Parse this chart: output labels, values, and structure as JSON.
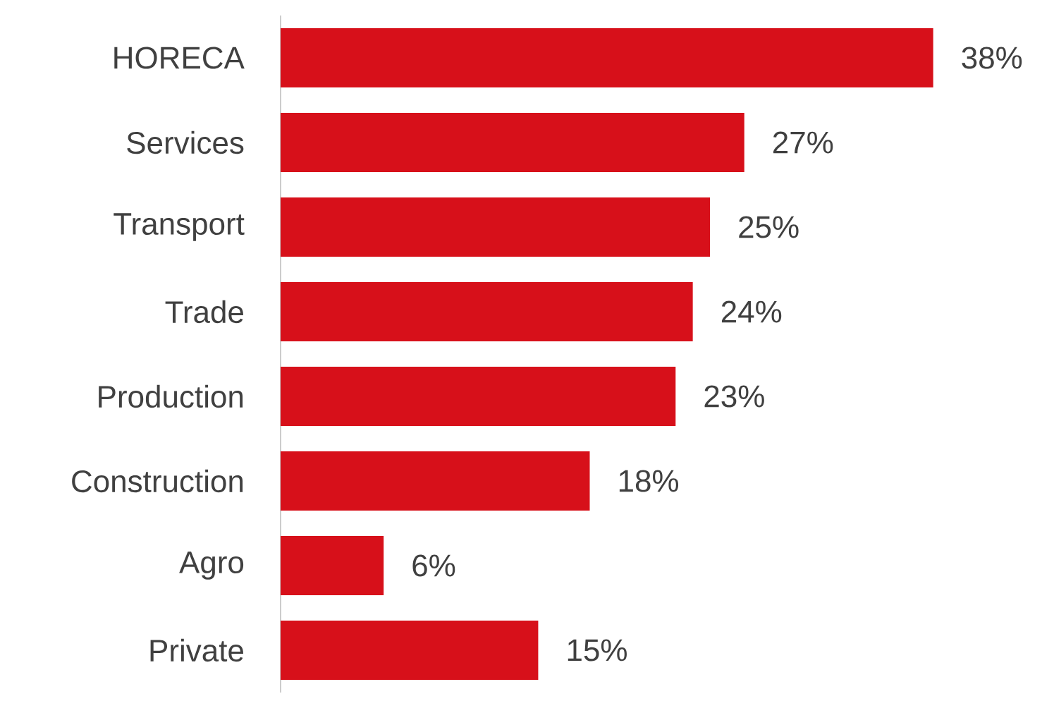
{
  "chart_data": {
    "type": "bar",
    "orientation": "horizontal",
    "categories": [
      "HORECA",
      "Services",
      "Transport",
      "Trade",
      "Production",
      "Construction",
      "Agro",
      "Private"
    ],
    "values": [
      38,
      27,
      25,
      24,
      23,
      18,
      6,
      15
    ],
    "value_labels": [
      "38%",
      "27%",
      "25%",
      "24%",
      "23%",
      "18%",
      "6%",
      "15%"
    ],
    "color": "#d7101a"
  }
}
